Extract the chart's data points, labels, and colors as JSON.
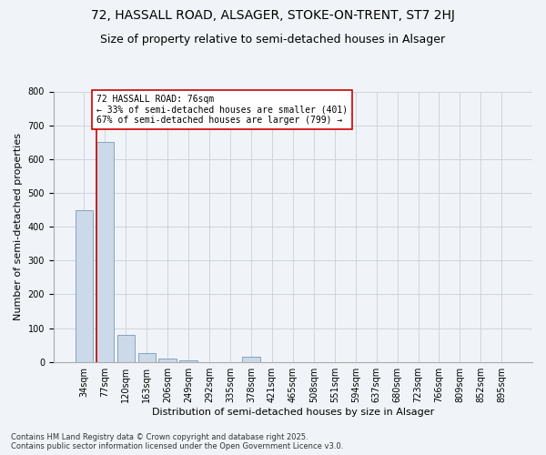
{
  "title_line1": "72, HASSALL ROAD, ALSAGER, STOKE-ON-TRENT, ST7 2HJ",
  "title_line2": "Size of property relative to semi-detached houses in Alsager",
  "xlabel": "Distribution of semi-detached houses by size in Alsager",
  "ylabel": "Number of semi-detached properties",
  "categories": [
    "34sqm",
    "77sqm",
    "120sqm",
    "163sqm",
    "206sqm",
    "249sqm",
    "292sqm",
    "335sqm",
    "378sqm",
    "421sqm",
    "465sqm",
    "508sqm",
    "551sqm",
    "594sqm",
    "637sqm",
    "680sqm",
    "723sqm",
    "766sqm",
    "809sqm",
    "852sqm",
    "895sqm"
  ],
  "values": [
    450,
    650,
    80,
    25,
    10,
    5,
    0,
    0,
    15,
    0,
    0,
    0,
    0,
    0,
    0,
    0,
    0,
    0,
    0,
    0,
    0
  ],
  "bar_color": "#ccd9e8",
  "bar_edge_color": "#7799bb",
  "annotation_text_line1": "72 HASSALL ROAD: 76sqm",
  "annotation_text_line2": "← 33% of semi-detached houses are smaller (401)",
  "annotation_text_line3": "67% of semi-detached houses are larger (799) →",
  "red_line_color": "#cc0000",
  "annotation_box_color": "#ffffff",
  "annotation_box_edge_color": "#cc0000",
  "grid_color": "#c8d0d8",
  "ylim": [
    0,
    800
  ],
  "yticks": [
    0,
    100,
    200,
    300,
    400,
    500,
    600,
    700,
    800
  ],
  "footer_line1": "Contains HM Land Registry data © Crown copyright and database right 2025.",
  "footer_line2": "Contains public sector information licensed under the Open Government Licence v3.0.",
  "bg_color": "#f0f4f8",
  "title_fontsize": 10,
  "subtitle_fontsize": 9,
  "axis_label_fontsize": 8,
  "tick_fontsize": 7,
  "annotation_fontsize": 7,
  "footer_fontsize": 6
}
